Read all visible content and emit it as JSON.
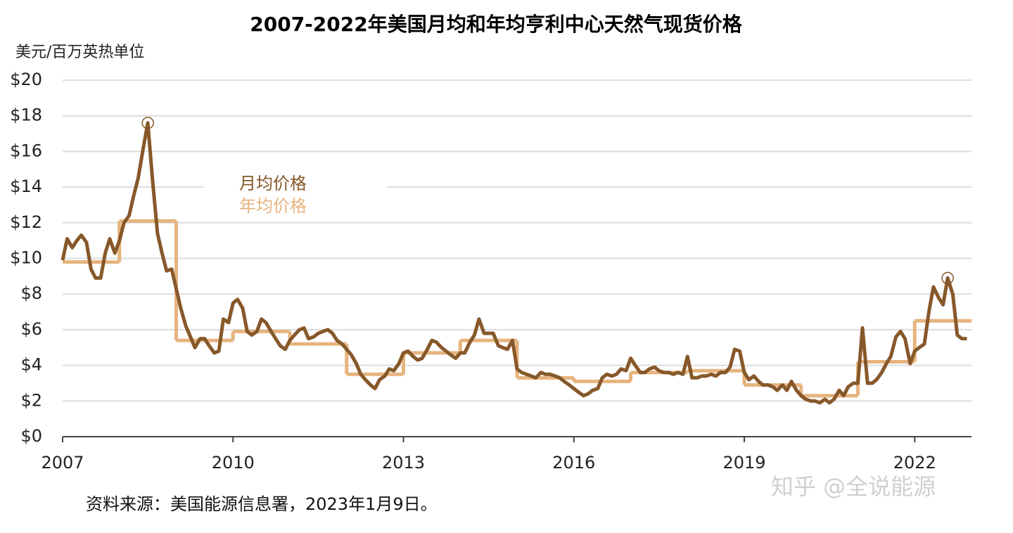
{
  "chart_data": {
    "type": "line",
    "title": "2007-2022年美国月均和年均亨利中心天然气现货价格",
    "y_label": "美元/百万英热单位",
    "source": "资料来源：美国能源信息署，2023年1月9日。",
    "watermark": "知乎 @全说能源",
    "xlim": [
      2007,
      2023
    ],
    "xticks": [
      2007,
      2010,
      2013,
      2016,
      2019,
      2022
    ],
    "ylim": [
      0,
      20
    ],
    "yticks": [
      {
        "value": 0,
        "label": "$0"
      },
      {
        "value": 2,
        "label": "$2"
      },
      {
        "value": 4,
        "label": "$4"
      },
      {
        "value": 6,
        "label": "$6"
      },
      {
        "value": 8,
        "label": "$8"
      },
      {
        "value": 10,
        "label": "$10"
      },
      {
        "value": 12,
        "label": "$12"
      },
      {
        "value": 14,
        "label": "$14"
      },
      {
        "value": 16,
        "label": "$16"
      },
      {
        "value": 18,
        "label": "$18"
      },
      {
        "value": 20,
        "label": "$20"
      }
    ],
    "grid": true,
    "legend": "upper-center",
    "series": [
      {
        "name": "月均价格",
        "color": "#87582a",
        "markers": [
          18,
          187
        ],
        "x": [
          2007,
          2007.08,
          2007.17,
          2007.25,
          2007.33,
          2007.42,
          2007.5,
          2007.58,
          2007.67,
          2007.75,
          2007.83,
          2007.92,
          2008,
          2008.08,
          2008.17,
          2008.25,
          2008.33,
          2008.42,
          2008.5,
          2008.58,
          2008.67,
          2008.75,
          2008.83,
          2008.92,
          2009,
          2009.08,
          2009.17,
          2009.25,
          2009.33,
          2009.42,
          2009.5,
          2009.58,
          2009.67,
          2009.75,
          2009.83,
          2009.92,
          2010,
          2010.08,
          2010.17,
          2010.25,
          2010.33,
          2010.42,
          2010.5,
          2010.58,
          2010.67,
          2010.75,
          2010.83,
          2010.92,
          2011,
          2011.08,
          2011.17,
          2011.25,
          2011.33,
          2011.42,
          2011.5,
          2011.58,
          2011.67,
          2011.75,
          2011.83,
          2011.92,
          2012,
          2012.08,
          2012.17,
          2012.25,
          2012.33,
          2012.42,
          2012.5,
          2012.58,
          2012.67,
          2012.75,
          2012.83,
          2012.92,
          2013,
          2013.08,
          2013.17,
          2013.25,
          2013.33,
          2013.42,
          2013.5,
          2013.58,
          2013.67,
          2013.75,
          2013.83,
          2013.92,
          2014,
          2014.08,
          2014.17,
          2014.25,
          2014.33,
          2014.42,
          2014.5,
          2014.58,
          2014.67,
          2014.75,
          2014.83,
          2014.92,
          2015,
          2015.08,
          2015.17,
          2015.25,
          2015.33,
          2015.42,
          2015.5,
          2015.58,
          2015.67,
          2015.75,
          2015.83,
          2015.92,
          2016,
          2016.08,
          2016.17,
          2016.25,
          2016.33,
          2016.42,
          2016.5,
          2016.58,
          2016.67,
          2016.75,
          2016.83,
          2016.92,
          2017,
          2017.08,
          2017.17,
          2017.25,
          2017.33,
          2017.42,
          2017.5,
          2017.58,
          2017.67,
          2017.75,
          2017.83,
          2017.92,
          2018,
          2018.08,
          2018.17,
          2018.25,
          2018.33,
          2018.42,
          2018.5,
          2018.58,
          2018.67,
          2018.75,
          2018.83,
          2018.92,
          2019,
          2019.08,
          2019.17,
          2019.25,
          2019.33,
          2019.42,
          2019.5,
          2019.58,
          2019.67,
          2019.75,
          2019.83,
          2019.92,
          2020,
          2020.08,
          2020.17,
          2020.25,
          2020.33,
          2020.42,
          2020.5,
          2020.58,
          2020.67,
          2020.75,
          2020.83,
          2020.92,
          2021,
          2021.08,
          2021.17,
          2021.25,
          2021.33,
          2021.42,
          2021.5,
          2021.58,
          2021.67,
          2021.75,
          2021.83,
          2021.92,
          2022,
          2022.08,
          2022.17,
          2022.25,
          2022.33,
          2022.42,
          2022.5,
          2022.58,
          2022.67,
          2022.75,
          2022.83,
          2022.92
        ],
        "values": [
          9.9,
          11.1,
          10.6,
          11.0,
          11.3,
          10.9,
          9.4,
          8.9,
          8.9,
          10.3,
          11.1,
          10.3,
          11.0,
          12.0,
          12.4,
          13.5,
          14.5,
          16.2,
          17.6,
          14.5,
          11.4,
          10.3,
          9.3,
          9.4,
          8.3,
          7.2,
          6.2,
          5.6,
          5.0,
          5.5,
          5.5,
          5.1,
          4.7,
          4.8,
          6.6,
          6.4,
          7.5,
          7.7,
          7.2,
          5.9,
          5.7,
          5.9,
          6.6,
          6.4,
          5.9,
          5.5,
          5.1,
          4.9,
          5.4,
          5.7,
          6.0,
          6.1,
          5.5,
          5.6,
          5.8,
          5.9,
          6.0,
          5.8,
          5.4,
          5.2,
          4.9,
          4.6,
          4.1,
          3.5,
          3.2,
          2.9,
          2.7,
          3.2,
          3.4,
          3.8,
          3.7,
          4.1,
          4.7,
          4.8,
          4.5,
          4.3,
          4.4,
          4.9,
          5.4,
          5.3,
          5.0,
          4.8,
          4.6,
          4.4,
          4.7,
          4.7,
          5.3,
          5.7,
          6.6,
          5.8,
          5.8,
          5.8,
          5.1,
          5.0,
          4.9,
          5.4,
          3.8,
          3.6,
          3.5,
          3.4,
          3.3,
          3.6,
          3.5,
          3.5,
          3.4,
          3.3,
          3.1,
          2.9,
          2.7,
          2.5,
          2.3,
          2.4,
          2.6,
          2.7,
          3.3,
          3.5,
          3.4,
          3.5,
          3.8,
          3.7,
          4.4,
          4.0,
          3.6,
          3.6,
          3.8,
          3.9,
          3.7,
          3.6,
          3.6,
          3.5,
          3.6,
          3.5,
          4.5,
          3.3,
          3.3,
          3.4,
          3.4,
          3.5,
          3.4,
          3.6,
          3.6,
          3.9,
          4.9,
          4.8,
          3.6,
          3.2,
          3.4,
          3.1,
          2.9,
          2.9,
          2.8,
          2.6,
          2.9,
          2.6,
          3.1,
          2.6,
          2.3,
          2.1,
          2.0,
          2.0,
          1.9,
          2.1,
          1.9,
          2.1,
          2.6,
          2.3,
          2.8,
          3.0,
          3.0,
          6.1,
          3.0,
          3.0,
          3.2,
          3.6,
          4.1,
          4.5,
          5.6,
          5.9,
          5.5,
          4.1,
          4.8,
          5.0,
          5.2,
          7.0,
          8.4,
          7.8,
          7.4,
          8.9,
          8.0,
          5.7,
          5.5,
          5.5
        ]
      },
      {
        "name": "年均价格",
        "color": "#e6b47f",
        "step": true,
        "x": [
          2007,
          2008,
          2009,
          2010,
          2011,
          2012,
          2013,
          2014,
          2015,
          2016,
          2017,
          2018,
          2019,
          2020,
          2021,
          2022
        ],
        "values": [
          9.8,
          12.1,
          5.4,
          5.9,
          5.2,
          3.5,
          4.7,
          5.4,
          3.3,
          3.1,
          3.6,
          3.7,
          2.9,
          2.3,
          4.2,
          6.5
        ]
      }
    ]
  }
}
